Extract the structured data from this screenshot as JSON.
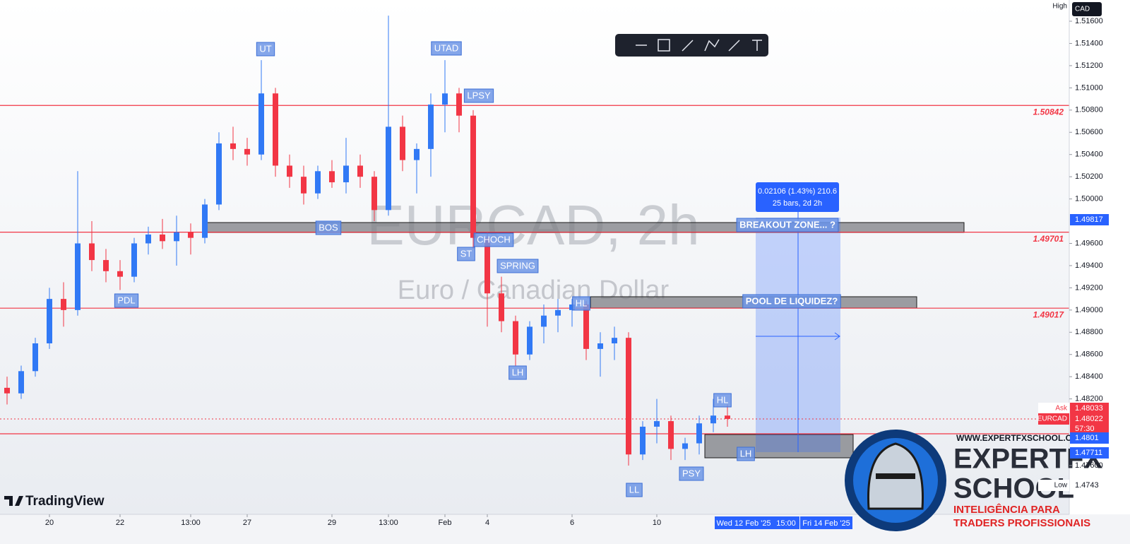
{
  "chart_data": {
    "type": "candlestick",
    "watermark_title": "EURCAD, 2h",
    "watermark_subtitle": "Euro / Canadian Dollar",
    "up_color": "#3179f5",
    "down_color": "#f23645",
    "open": [
      1.483,
      1.4825,
      1.4845,
      1.487,
      1.491,
      1.49,
      1.496,
      1.4945,
      1.4935,
      1.493,
      1.496,
      1.4968,
      1.4962,
      1.497,
      1.4965,
      1.4995,
      1.505,
      1.5045,
      1.504,
      1.5095,
      1.503,
      1.502,
      1.5005,
      1.5025,
      1.5015,
      1.503,
      1.502,
      1.499,
      1.5065,
      1.5035,
      1.5045,
      1.5085,
      1.5095,
      1.5075,
      1.4965,
      1.4915,
      1.489,
      1.486,
      1.4885,
      1.4895,
      1.49,
      1.4905,
      1.4865,
      1.487,
      1.4875,
      1.477,
      1.4795,
      1.48,
      1.4775,
      1.478,
      1.4798,
      1.4805
    ],
    "high": [
      1.484,
      1.485,
      1.4875,
      1.492,
      1.4925,
      1.5025,
      1.498,
      1.4955,
      1.4945,
      1.4965,
      1.4975,
      1.4982,
      1.4985,
      1.4978,
      1.5,
      1.506,
      1.5065,
      1.5055,
      1.5125,
      1.51,
      1.504,
      1.503,
      1.503,
      1.5035,
      1.5055,
      1.504,
      1.5025,
      1.5165,
      1.5075,
      1.505,
      1.5095,
      1.5125,
      1.51,
      1.508,
      1.497,
      1.493,
      1.4895,
      1.489,
      1.4905,
      1.491,
      1.491,
      1.4908,
      1.488,
      1.4885,
      1.488,
      1.48,
      1.482,
      1.4805,
      1.4785,
      1.4805,
      1.482,
      1.4815
    ],
    "low": [
      1.4815,
      1.482,
      1.484,
      1.4865,
      1.4885,
      1.4895,
      1.4935,
      1.4925,
      1.4918,
      1.4925,
      1.495,
      1.4955,
      1.494,
      1.495,
      1.496,
      1.499,
      1.5035,
      1.503,
      1.5035,
      1.502,
      1.501,
      1.4995,
      1.5,
      1.501,
      1.5005,
      1.501,
      1.498,
      1.4985,
      1.5025,
      1.5005,
      1.502,
      1.506,
      1.506,
      1.4955,
      1.4885,
      1.488,
      1.485,
      1.4855,
      1.487,
      1.488,
      1.4885,
      1.4855,
      1.484,
      1.4855,
      1.476,
      1.4765,
      1.478,
      1.4765,
      1.4765,
      1.477,
      1.479,
      1.4795
    ],
    "close": [
      1.4825,
      1.4845,
      1.487,
      1.491,
      1.49,
      1.496,
      1.4945,
      1.4935,
      1.493,
      1.496,
      1.4968,
      1.4962,
      1.497,
      1.4965,
      1.4995,
      1.505,
      1.5045,
      1.504,
      1.5095,
      1.503,
      1.502,
      1.5005,
      1.5025,
      1.5015,
      1.503,
      1.502,
      1.499,
      1.5065,
      1.5035,
      1.5045,
      1.5085,
      1.5095,
      1.5075,
      1.4965,
      1.4915,
      1.489,
      1.486,
      1.4885,
      1.4895,
      1.49,
      1.4905,
      1.4865,
      1.487,
      1.4875,
      1.477,
      1.4795,
      1.48,
      1.4775,
      1.478,
      1.4798,
      1.4805,
      1.4802
    ],
    "x_labels": [
      {
        "index": 3,
        "label": "20"
      },
      {
        "index": 8,
        "label": "22"
      },
      {
        "index": 13,
        "label": "13:00"
      },
      {
        "index": 17,
        "label": "27"
      },
      {
        "index": 23,
        "label": "29"
      },
      {
        "index": 27,
        "label": "13:00"
      },
      {
        "index": 31,
        "label": "Feb"
      },
      {
        "index": 34,
        "label": "4"
      },
      {
        "index": 40,
        "label": "6"
      },
      {
        "index": 46,
        "label": "10"
      }
    ],
    "ylim": [
      1.47161,
      1.51791
    ],
    "yticks": [
      {
        "value": 1.516,
        "label": "1.51600"
      },
      {
        "value": 1.514,
        "label": "1.51400"
      },
      {
        "value": 1.512,
        "label": "1.51200"
      },
      {
        "value": 1.51,
        "label": "1.51000"
      },
      {
        "value": 1.508,
        "label": "1.50800"
      },
      {
        "value": 1.506,
        "label": "1.50600"
      },
      {
        "value": 1.504,
        "label": "1.50400"
      },
      {
        "value": 1.502,
        "label": "1.50200"
      },
      {
        "value": 1.5,
        "label": "1.50000"
      },
      {
        "value": 1.496,
        "label": "1.49600"
      },
      {
        "value": 1.494,
        "label": "1.49400"
      },
      {
        "value": 1.492,
        "label": "1.49200"
      },
      {
        "value": 1.49,
        "label": "1.49000"
      },
      {
        "value": 1.488,
        "label": "1.48800"
      },
      {
        "value": 1.486,
        "label": "1.48600"
      },
      {
        "value": 1.484,
        "label": "1.48400"
      },
      {
        "value": 1.482,
        "label": "1.48200"
      },
      {
        "value": 1.476,
        "label": "1.47600"
      }
    ],
    "levels": [
      {
        "value": 1.50842
      },
      {
        "value": 1.49701
      },
      {
        "value": 1.49017
      },
      {
        "value": 1.47886
      }
    ],
    "level_color": "#f23645",
    "annotations": [
      "UT",
      "UTAD",
      "LPSY",
      "BOS",
      "CHOCH",
      "ST",
      "SPRING",
      "PDL",
      "HL",
      "LH",
      "HL",
      "LH",
      "LL",
      "PSY",
      "BREAKOUT ZONE... ?",
      "POOL DE LIQUIDEZ?"
    ],
    "measure": [
      "0.02106 (1.43%) 210.6",
      "25 bars, 2d 2h"
    ],
    "price_tags": [
      {
        "label": "High"
      },
      {
        "label": "CAD"
      },
      {
        "value": 1.49817
      },
      {
        "label": "Ask",
        "value": 1.48033
      },
      {
        "label": "EURCAD",
        "value": 1.48022,
        "timer": "57:30"
      },
      {
        "value": 1.4801
      },
      {
        "value": 1.47711
      },
      {
        "label": "Low",
        "value": 1.4743
      }
    ],
    "time_bubbles": [
      "Wed 12 Feb '25",
      "15:00",
      "Fri 14 Feb '25"
    ]
  },
  "logo": "TradingView",
  "branding": {
    "url": "WWW.EXPERTFXSCHOOL.COM",
    "name_1": "EXPERTFX",
    "name_2": "SCHOOL",
    "tagline_1": "INTELIGÊNCIA PARA",
    "tagline_2": "TRADERS PROFISSIONAIS"
  }
}
